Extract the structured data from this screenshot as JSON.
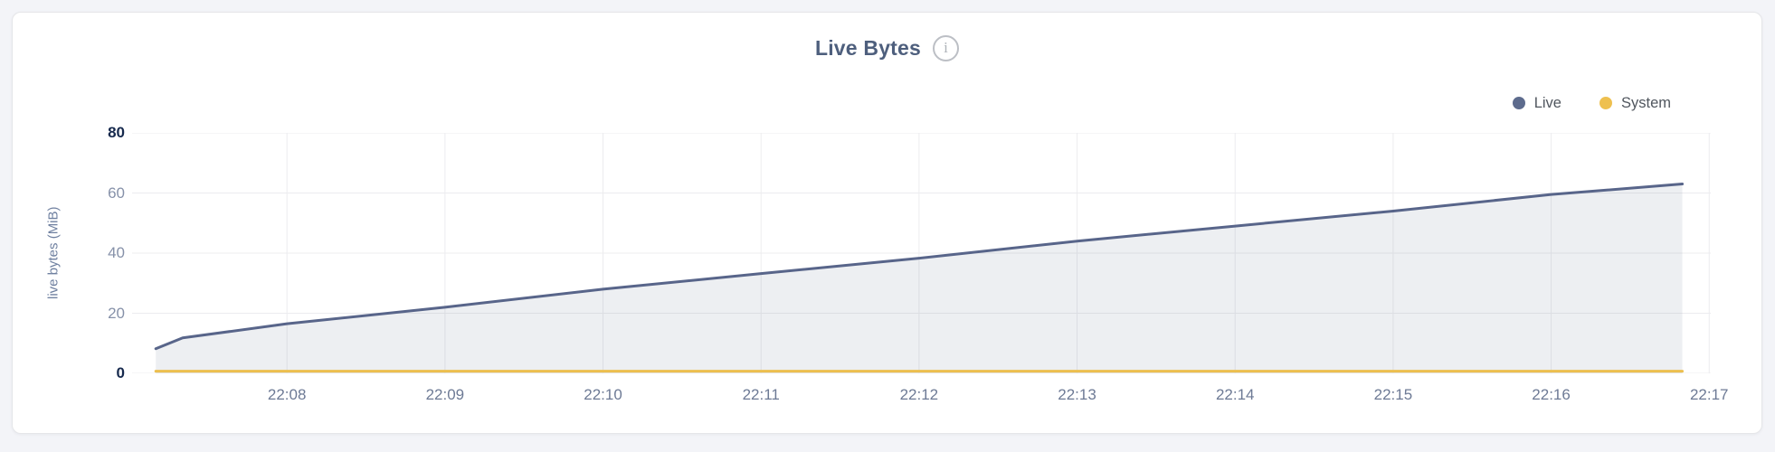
{
  "page": {
    "background_color": "#f3f4f8"
  },
  "card": {
    "background_color": "#ffffff",
    "border_color": "#e5e6e9"
  },
  "header": {
    "title": "Live Bytes",
    "info_icon_glyph": "i"
  },
  "legend": {
    "position": "top-right",
    "items": [
      {
        "label": "Live",
        "color": "#5d6b8d"
      },
      {
        "label": "System",
        "color": "#eec04f"
      }
    ]
  },
  "chart_data": {
    "type": "area",
    "title": "Live Bytes",
    "xlabel": "",
    "ylabel": "live bytes (MiB)",
    "x_unit": "time of day (HH:MM)",
    "ylim": [
      0,
      80
    ],
    "x_domain_minutes_after_2200": [
      7.02,
      17.01
    ],
    "grid": true,
    "legend_position": "top-right",
    "gridline_color": "#ececef",
    "y_ticks": [
      {
        "value": 0,
        "label": "0",
        "emphasized": true
      },
      {
        "value": 20,
        "label": "20",
        "emphasized": false
      },
      {
        "value": 40,
        "label": "40",
        "emphasized": false
      },
      {
        "value": 60,
        "label": "60",
        "emphasized": false
      },
      {
        "value": 80,
        "label": "80",
        "emphasized": true
      }
    ],
    "x_ticks": [
      {
        "minutes": 8,
        "label": "22:08"
      },
      {
        "minutes": 9,
        "label": "22:09"
      },
      {
        "minutes": 10,
        "label": "22:10"
      },
      {
        "minutes": 11,
        "label": "22:11"
      },
      {
        "minutes": 12,
        "label": "22:12"
      },
      {
        "minutes": 13,
        "label": "22:13"
      },
      {
        "minutes": 14,
        "label": "22:14"
      },
      {
        "minutes": 15,
        "label": "22:15"
      },
      {
        "minutes": 16,
        "label": "22:16"
      },
      {
        "minutes": 17,
        "label": "22:17"
      }
    ],
    "series": [
      {
        "name": "Live",
        "color": "#58658a",
        "fill_color": "rgba(92,105,141,0.11)",
        "x_minutes_after_2200": [
          7.17,
          7.34,
          8,
          9,
          10,
          11,
          12,
          13,
          14,
          15,
          16,
          16.83
        ],
        "y_mib": [
          8.2,
          11.8,
          16.5,
          22,
          28,
          33.2,
          38.3,
          44,
          49,
          54,
          59.5,
          63
        ]
      },
      {
        "name": "System",
        "color": "#ecbf4e",
        "fill_color": null,
        "x_minutes_after_2200": [
          7.17,
          16.83
        ],
        "y_mib": [
          0.7,
          0.7
        ]
      }
    ]
  }
}
